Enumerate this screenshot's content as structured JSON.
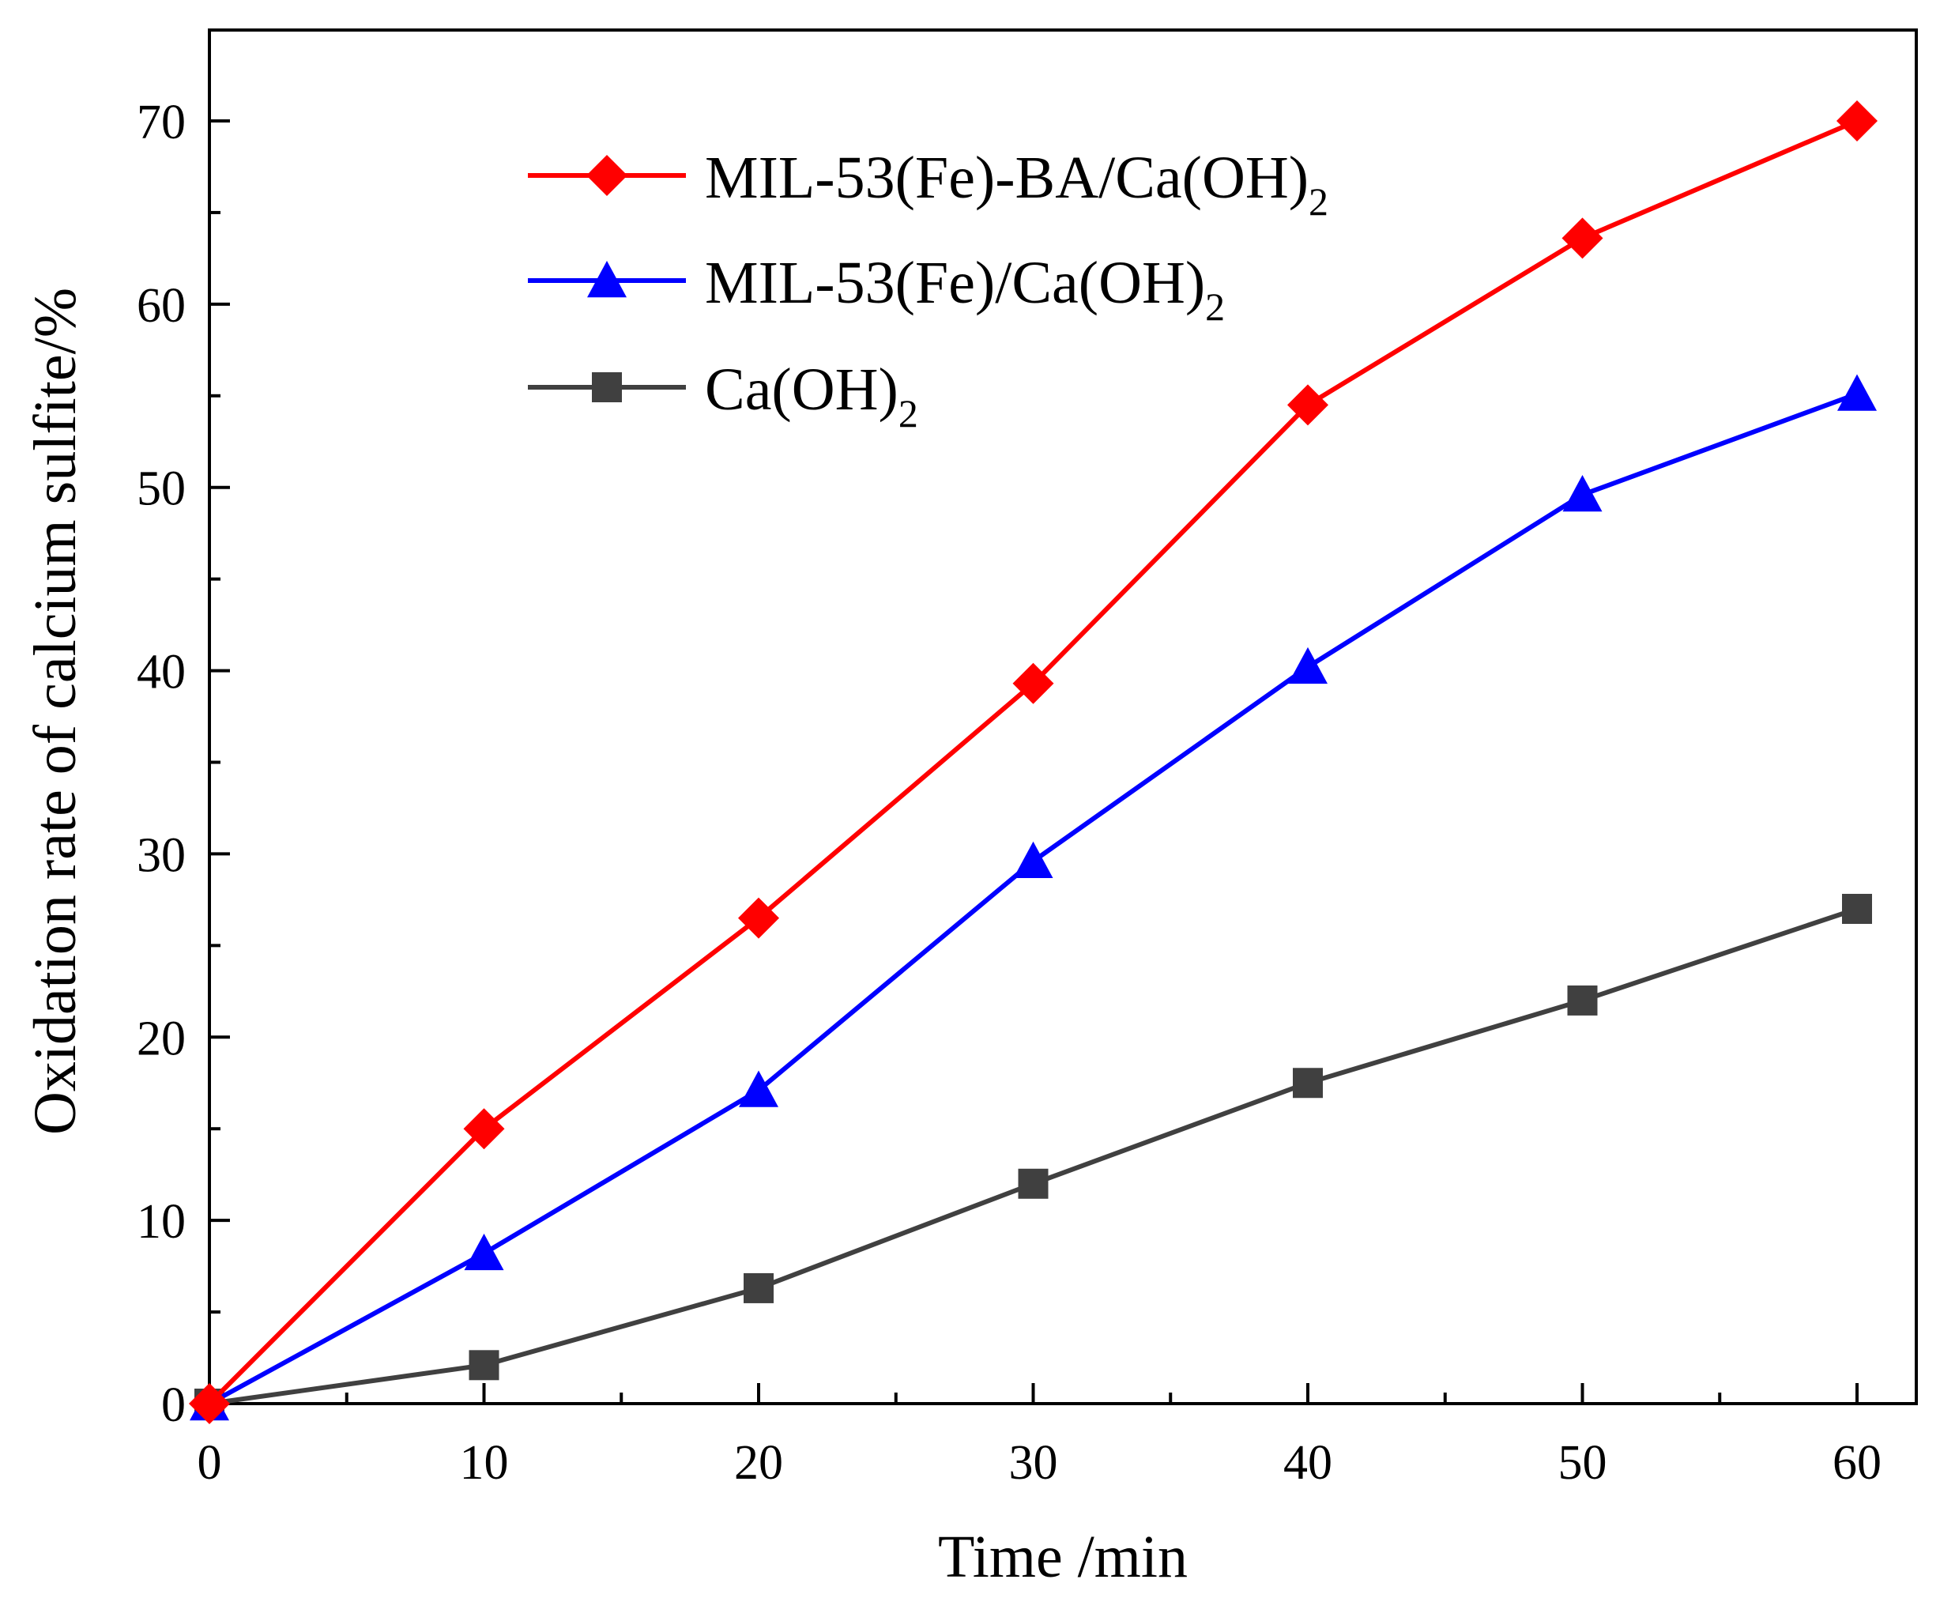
{
  "chart_data": {
    "type": "line",
    "title": "",
    "xlabel": "Time /min",
    "ylabel": "Oxidation rate of calcium sulfite/%",
    "xlim": [
      0,
      60
    ],
    "ylim": [
      0,
      75
    ],
    "x": [
      0,
      10,
      20,
      30,
      40,
      50,
      60
    ],
    "xticks": [
      0,
      10,
      20,
      30,
      40,
      50,
      60
    ],
    "yticks": [
      0,
      10,
      20,
      30,
      40,
      50,
      60,
      70
    ],
    "grid": false,
    "legend_position": "top-left",
    "series": [
      {
        "name": "MIL-53(Fe)-BA/Ca(OH)2",
        "label_main": "MIL-53(Fe)-BA/Ca(OH)",
        "label_sub": "2",
        "color": "#ff0000",
        "marker": "diamond",
        "values": [
          0,
          15.0,
          26.5,
          39.3,
          54.5,
          63.6,
          70.0
        ]
      },
      {
        "name": "MIL-53(Fe)/Ca(OH)2",
        "label_main": "MIL-53(Fe)/Ca(OH)",
        "label_sub": "2",
        "color": "#0000ff",
        "marker": "triangle",
        "values": [
          0,
          8.2,
          17.1,
          29.6,
          40.2,
          49.6,
          55.1
        ]
      },
      {
        "name": "Ca(OH)2",
        "label_main": "Ca(OH)",
        "label_sub": "2",
        "color": "#404040",
        "marker": "square",
        "values": [
          0,
          2.1,
          6.3,
          12.0,
          17.5,
          22.0,
          27.0
        ]
      }
    ]
  }
}
